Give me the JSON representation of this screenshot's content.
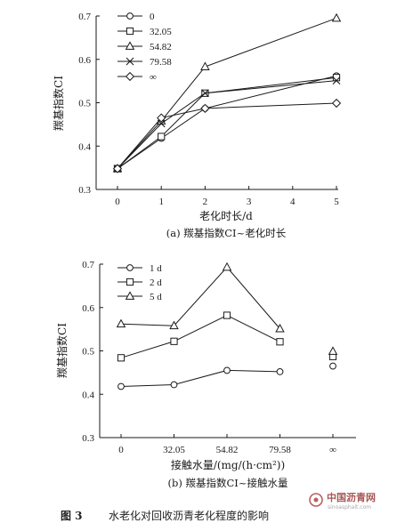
{
  "chart_data": [
    {
      "type": "line",
      "xlabel": "老化时长/d",
      "ylabel": "羰基指数CI",
      "caption": "(a) 羰基指数CI~老化时长",
      "x": [
        0,
        1,
        2,
        5
      ],
      "xticks": [
        "0",
        "1",
        "2",
        "3",
        "4",
        "5"
      ],
      "yticks": [
        "0.3",
        "0.4",
        "0.5",
        "0.6",
        "0.7"
      ],
      "xlim": [
        0,
        5
      ],
      "ylim": [
        0.3,
        0.7
      ],
      "legend_position": "top-left",
      "series": [
        {
          "name": "0",
          "marker": "circle",
          "values": [
            0.348,
            0.418,
            0.487,
            0.562
          ]
        },
        {
          "name": "32.05",
          "marker": "square",
          "values": [
            0.348,
            0.422,
            0.522,
            0.558
          ]
        },
        {
          "name": "54.82",
          "marker": "triangle",
          "values": [
            0.348,
            0.458,
            0.583,
            0.695
          ]
        },
        {
          "name": "79.58",
          "marker": "x",
          "values": [
            0.348,
            0.452,
            0.522,
            0.551
          ]
        },
        {
          "name": "∞",
          "marker": "diamond",
          "values": [
            0.348,
            0.465,
            0.487,
            0.499
          ]
        }
      ]
    },
    {
      "type": "line",
      "xlabel": "接触水量/(mg/(h·cm²))",
      "ylabel": "羰基指数CI",
      "caption": "(b) 羰基指数CI~接触水量",
      "categories": [
        "0",
        "32.05",
        "54.82",
        "79.58",
        "∞"
      ],
      "yticks": [
        "0.3",
        "0.4",
        "0.5",
        "0.6",
        "0.7"
      ],
      "ylim": [
        0.3,
        0.7
      ],
      "legend_position": "top-left",
      "series": [
        {
          "name": "1 d",
          "marker": "circle",
          "values": [
            0.418,
            0.422,
            0.455,
            0.452,
            0.465
          ]
        },
        {
          "name": "2 d",
          "marker": "square",
          "values": [
            0.484,
            0.522,
            0.582,
            0.521,
            0.487
          ]
        },
        {
          "name": "5 d",
          "marker": "triangle",
          "values": [
            0.562,
            0.558,
            0.693,
            0.551,
            0.499
          ]
        }
      ]
    }
  ],
  "figure_caption": {
    "label": "图 3",
    "text": "水老化对回收沥青老化程度的影响"
  },
  "watermark": {
    "name": "中国沥青网",
    "url": "sinoasphalt.com"
  }
}
